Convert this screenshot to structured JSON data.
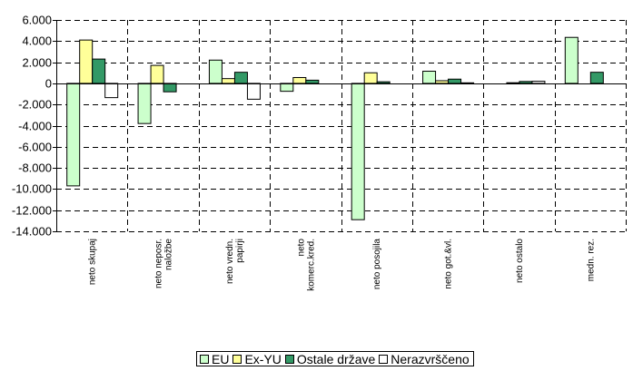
{
  "chart_data": {
    "type": "bar",
    "categories": [
      [
        "neto skupaj"
      ],
      [
        "neto neposr.",
        "naložbe"
      ],
      [
        "neto vredn.",
        "papirji"
      ],
      [
        "neto",
        "komerc.kred."
      ],
      [
        "neto posojila"
      ],
      [
        "neto got.&vl."
      ],
      [
        "neto ostalo"
      ],
      [
        "medn. rez."
      ]
    ],
    "series": [
      {
        "name": "EU",
        "color": "#ccffcc",
        "values": [
          -9700,
          -3800,
          2200,
          -750,
          -12900,
          1150,
          0,
          4350
        ]
      },
      {
        "name": "Ex-YU",
        "color": "#ffff99",
        "values": [
          4100,
          1700,
          450,
          550,
          1000,
          250,
          60,
          0
        ]
      },
      {
        "name": "Ostale države",
        "color": "#339966",
        "values": [
          2300,
          -800,
          1050,
          300,
          150,
          400,
          180,
          1050
        ]
      },
      {
        "name": "Nerazvrščeno",
        "color": "#ffffff",
        "values": [
          -1350,
          0,
          -1500,
          0,
          0,
          50,
          200,
          0
        ]
      }
    ],
    "yticks": [
      "6.000",
      "4.000",
      "2.000",
      "0",
      "-2.000",
      "-4.000",
      "-6.000",
      "-8.000",
      "-10.000",
      "-12.000",
      "-14.000"
    ],
    "ylim": [
      -14000,
      6000
    ],
    "grid": true,
    "legend_position": "bottom"
  }
}
